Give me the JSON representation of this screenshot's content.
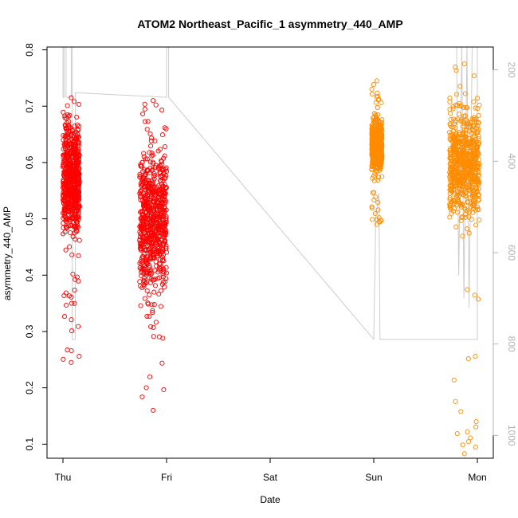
{
  "chart_data": {
    "type": "scatter",
    "title": "ATOM2 Northeast_Pacific_1 asymmetry_440_AMP",
    "xlabel": "Date",
    "ylabel": "asymmetry_440_AMP",
    "x_ticks": [
      "Thu",
      "Fri",
      "Sat",
      "Sun",
      "Mon"
    ],
    "x_range": [
      "Thu 00:00",
      "Mon 00:00"
    ],
    "ylim": [
      0.075,
      0.805
    ],
    "y_ticks": [
      0.1,
      0.2,
      0.3,
      0.4,
      0.5,
      0.6,
      0.7,
      0.8
    ],
    "y2_ticks": [
      200,
      400,
      600,
      800,
      1000
    ],
    "y2_reversed": true,
    "grid": false,
    "series": [
      {
        "color": "#ff0000",
        "marker": "open-circle",
        "clusters": [
          {
            "start_day": 0.0,
            "end_day": 0.16,
            "y_min": 0.245,
            "y_max": 0.715,
            "y_center": 0.57,
            "spread": 0.09
          },
          {
            "start_day": 0.74,
            "end_day": 1.0,
            "y_min": 0.16,
            "y_max": 0.71,
            "y_center": 0.5,
            "spread": 0.12
          }
        ]
      },
      {
        "color": "#ff8c00",
        "marker": "open-circle",
        "clusters": [
          {
            "start_day": 2.98,
            "end_day": 3.08,
            "y_min": 0.49,
            "y_max": 0.745,
            "y_center": 0.63,
            "spread": 0.04
          },
          {
            "start_day": 3.73,
            "end_day": 4.02,
            "y_min": 0.083,
            "y_max": 0.775,
            "y_center": 0.6,
            "spread": 0.09
          }
        ]
      }
    ],
    "secondary_line": {
      "color": "#cccccc",
      "y2_range": [
        150,
        1050
      ],
      "path": [
        [
          0.0,
          150
        ],
        [
          0.0,
          260
        ],
        [
          0.01,
          260
        ],
        [
          0.01,
          150
        ],
        [
          0.03,
          150
        ],
        [
          0.03,
          260
        ],
        [
          0.08,
          260
        ],
        [
          0.08,
          150
        ],
        [
          0.09,
          150
        ],
        [
          0.09,
          790
        ],
        [
          0.12,
          790
        ],
        [
          0.12,
          250
        ],
        [
          1.0,
          260
        ],
        [
          1.0,
          150
        ],
        [
          1.02,
          150
        ],
        [
          1.02,
          260
        ],
        [
          3.0,
          790
        ],
        [
          3.02,
          520
        ],
        [
          3.05,
          470
        ],
        [
          3.06,
          790
        ],
        [
          4.0,
          790
        ],
        [
          4.0,
          780
        ],
        [
          4.0,
          150
        ],
        [
          3.95,
          150
        ],
        [
          3.92,
          720
        ],
        [
          3.9,
          150
        ],
        [
          3.87,
          700
        ],
        [
          3.85,
          150
        ],
        [
          3.82,
          650
        ],
        [
          3.8,
          150
        ]
      ]
    }
  }
}
